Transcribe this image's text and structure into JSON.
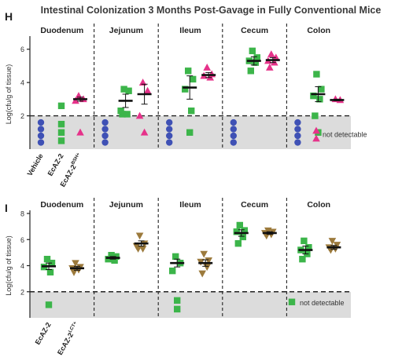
{
  "figure": {
    "title": "Intestinal Colonization 3 Months Post-Gavage in Fully Conventional Mice",
    "colors": {
      "vehicle": "#3f51b5",
      "ecaz2": "#3cb54a",
      "ecaz2_bsh": "#e6328a",
      "ecaz2_lct": "#9c7a3c",
      "band": "#dcdcdc"
    }
  },
  "chart_data": [
    {
      "panel": "H",
      "type": "scatter",
      "ylabel": "Log(cfu/g of tissue)",
      "yticks": [
        "2",
        "4",
        "6"
      ],
      "ylim": [
        0,
        6.6
      ],
      "limit_of_detection": 2,
      "segments": [
        "Duodenum",
        "Jejunum",
        "Ileum",
        "Cecum",
        "Colon"
      ],
      "groups": [
        "Vehicle",
        "EcAZ-2",
        "EcAZ-2BSH+"
      ],
      "group_label_main": [
        "Vehicle",
        "EcAZ-2",
        "EcAZ-2"
      ],
      "group_label_sup": [
        "",
        "",
        "BSH+"
      ],
      "legend": "not detectable",
      "series": [
        {
          "segment": "Duodenum",
          "group": "Vehicle",
          "shape": "circle",
          "values": [],
          "nd": 4
        },
        {
          "segment": "Duodenum",
          "group": "EcAZ-2",
          "shape": "square",
          "values": [
            2.6
          ],
          "nd": 3
        },
        {
          "segment": "Duodenum",
          "group": "EcAZ-2BSH+",
          "shape": "triangle",
          "values": [
            3.2,
            3.0,
            2.9
          ],
          "nd": 1,
          "mean": 3.0,
          "err": 0.12
        },
        {
          "segment": "Jejunum",
          "group": "Vehicle",
          "shape": "circle",
          "values": [],
          "nd": 4
        },
        {
          "segment": "Jejunum",
          "group": "EcAZ-2",
          "shape": "square",
          "values": [
            3.6,
            3.5,
            2.3,
            2.1,
            2.1
          ],
          "mean": 2.9,
          "err": 0.4
        },
        {
          "segment": "Jejunum",
          "group": "EcAZ-2BSH+",
          "shape": "triangle",
          "values": [
            4.0,
            3.5,
            2.0
          ],
          "nd": 1,
          "mean": 3.3,
          "err": 0.6
        },
        {
          "segment": "Ileum",
          "group": "Vehicle",
          "shape": "circle",
          "values": [],
          "nd": 4
        },
        {
          "segment": "Ileum",
          "group": "EcAZ-2",
          "shape": "square",
          "values": [
            4.7,
            4.2,
            3.6,
            2.3
          ],
          "nd": 1,
          "mean": 3.7,
          "err": 0.7
        },
        {
          "segment": "Ileum",
          "group": "EcAZ-2BSH+",
          "shape": "triangle",
          "values": [
            4.9,
            4.5,
            4.4,
            4.3
          ],
          "mean": 4.45,
          "err": 0.15
        },
        {
          "segment": "Cecum",
          "group": "Vehicle",
          "shape": "circle",
          "values": [],
          "nd": 4
        },
        {
          "segment": "Cecum",
          "group": "EcAZ-2",
          "shape": "square",
          "values": [
            5.9,
            5.5,
            5.3,
            5.2,
            4.7
          ],
          "mean": 5.3,
          "err": 0.25
        },
        {
          "segment": "Cecum",
          "group": "EcAZ-2BSH+",
          "shape": "triangle",
          "values": [
            5.7,
            5.5,
            5.3,
            5.2,
            4.9
          ],
          "mean": 5.35,
          "err": 0.15
        },
        {
          "segment": "Colon",
          "group": "Vehicle",
          "shape": "circle",
          "values": [],
          "nd": 4
        },
        {
          "segment": "Colon",
          "group": "EcAZ-2",
          "shape": "square",
          "values": [
            4.5,
            3.6,
            3.2,
            3.0,
            2.0
          ],
          "nd": 1,
          "mean": 3.3,
          "err": 0.45
        },
        {
          "segment": "Colon",
          "group": "EcAZ-2BSH+",
          "shape": "triangle",
          "values": [
            3.0,
            2.95
          ],
          "mean": 2.95,
          "err": 0.05
        }
      ]
    },
    {
      "panel": "I",
      "type": "scatter",
      "ylabel": "Log(cfu/g of tissue)",
      "yticks": [
        "2",
        "4",
        "6",
        "8"
      ],
      "ylim": [
        0,
        8
      ],
      "limit_of_detection": 2,
      "segments": [
        "Duodenum",
        "Jejunum",
        "Ileum",
        "Cecum",
        "Colon"
      ],
      "groups": [
        "EcAZ-2",
        "EcAZ-2LCT+"
      ],
      "group_label_main": [
        "EcAZ-2",
        "EcAZ-2"
      ],
      "group_label_sup": [
        "",
        "LCT+"
      ],
      "legend": "not detectable",
      "series": [
        {
          "segment": "Duodenum",
          "group": "EcAZ-2",
          "shape": "square",
          "values": [
            4.5,
            4.2,
            3.9,
            3.5
          ],
          "nd": 1,
          "mean": 3.95,
          "err": 0.25
        },
        {
          "segment": "Duodenum",
          "group": "EcAZ-2LCT+",
          "shape": "itriangle",
          "values": [
            4.2,
            3.9,
            3.8,
            3.7,
            3.5
          ],
          "mean": 3.8,
          "err": 0.15
        },
        {
          "segment": "Jejunum",
          "group": "EcAZ-2",
          "shape": "square",
          "values": [
            4.8,
            4.7,
            4.5,
            4.4
          ],
          "mean": 4.6,
          "err": 0.1
        },
        {
          "segment": "Jejunum",
          "group": "EcAZ-2LCT+",
          "shape": "itriangle",
          "values": [
            6.3,
            5.7,
            5.5,
            5.3,
            5.3
          ],
          "mean": 5.7,
          "err": 0.2
        },
        {
          "segment": "Ileum",
          "group": "EcAZ-2",
          "shape": "square",
          "values": [
            4.7,
            4.2,
            3.6
          ],
          "nd": 2,
          "mean": 4.2,
          "err": 0.3
        },
        {
          "segment": "Ileum",
          "group": "EcAZ-2LCT+",
          "shape": "itriangle",
          "values": [
            4.9,
            4.4,
            4.3,
            3.9,
            3.4
          ],
          "mean": 4.2,
          "err": 0.25
        },
        {
          "segment": "Cecum",
          "group": "EcAZ-2",
          "shape": "square",
          "values": [
            7.1,
            6.7,
            6.6,
            6.2,
            5.7
          ],
          "mean": 6.5,
          "err": 0.25
        },
        {
          "segment": "Cecum",
          "group": "EcAZ-2LCT+",
          "shape": "itriangle",
          "values": [
            6.7,
            6.6,
            6.5,
            6.4,
            6.3
          ],
          "mean": 6.5,
          "err": 0.1
        },
        {
          "segment": "Colon",
          "group": "EcAZ-2",
          "shape": "square",
          "values": [
            5.9,
            5.4,
            5.2,
            4.9,
            4.5
          ],
          "mean": 5.2,
          "err": 0.3
        },
        {
          "segment": "Colon",
          "group": "EcAZ-2LCT+",
          "shape": "itriangle",
          "values": [
            5.9,
            5.6,
            5.4,
            5.3,
            5.2
          ],
          "mean": 5.4,
          "err": 0.15
        }
      ]
    }
  ]
}
